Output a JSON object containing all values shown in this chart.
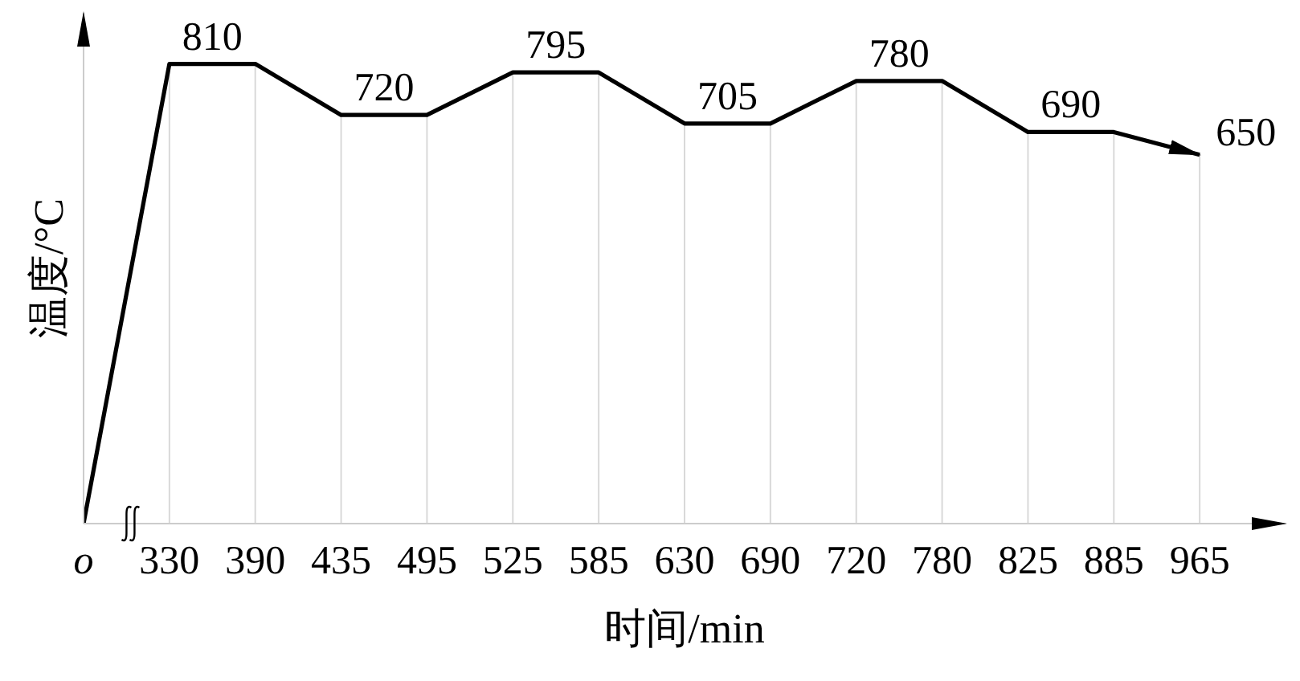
{
  "chart_data": {
    "type": "line",
    "xlabel": "时间/min",
    "ylabel": "温度/°C",
    "categories": [
      "o",
      "330",
      "390",
      "435",
      "495",
      "525",
      "585",
      "630",
      "690",
      "720",
      "780",
      "825",
      "885",
      "965"
    ],
    "values": [
      0,
      810,
      810,
      720,
      720,
      795,
      795,
      705,
      705,
      780,
      780,
      690,
      690,
      650
    ],
    "value_labels": [
      null,
      "810",
      null,
      "720",
      null,
      "795",
      null,
      "705",
      null,
      "780",
      null,
      "690",
      null,
      "650"
    ],
    "color": "#000000",
    "ylim": [
      0,
      900
    ],
    "tick_labels": "x",
    "grid": "x",
    "marker": "none",
    "line_style": "solid"
  }
}
